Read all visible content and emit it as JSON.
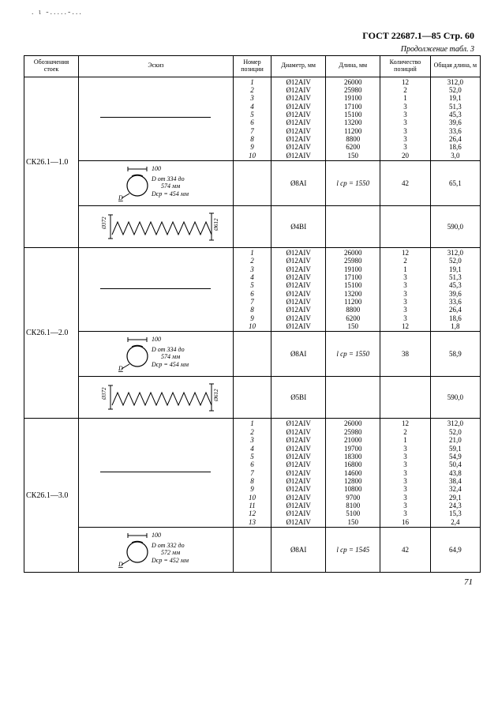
{
  "header": "ГОСТ 22687.1—85 Стр. 60",
  "continuation": "Продолжение табл. 3",
  "columns": {
    "c1": "Обозначения стоек",
    "c2": "Эскиз",
    "c3": "Номер позиции",
    "c4": "Диаметр, мм",
    "c5": "Длина, мм",
    "c6": "Количество позиций",
    "c7": "Общая длина, м"
  },
  "groups": [
    {
      "label": "СК26.1—1.0",
      "rows": [
        {
          "sketch": "bar",
          "nums": [
            "1",
            "2",
            "3",
            "4",
            "5",
            "6",
            "7",
            "8",
            "9",
            "10"
          ],
          "dia": [
            "Ø12AIV",
            "Ø12AIV",
            "Ø12AIV",
            "Ø12AIV",
            "Ø12AIV",
            "Ø12AIV",
            "Ø12AIV",
            "Ø12AIV",
            "Ø12AIV",
            "Ø12AIV"
          ],
          "len": [
            "26000",
            "25980",
            "19100",
            "17100",
            "15100",
            "13200",
            "11200",
            "8800",
            "6200",
            "150"
          ],
          "qty": [
            "12",
            "2",
            "1",
            "3",
            "3",
            "3",
            "3",
            "3",
            "3",
            "20"
          ],
          "tot": [
            "312,0",
            "52,0",
            "19,1",
            "51,3",
            "45,3",
            "39,6",
            "33,6",
            "26,4",
            "18,6",
            "3,0"
          ]
        },
        {
          "sketch": "ring",
          "ring": {
            "w": "100",
            "line1": "D от 334 до",
            "line2": "574 мм",
            "line3": "Dср = 454 мм"
          },
          "dia": "Ø8AI",
          "len": "l ср = 1550",
          "qty": "42",
          "tot": "65,1"
        },
        {
          "sketch": "spiral",
          "spiral": {
            "left": "Ø372",
            "right": "Ø612"
          },
          "dia": "Ø4BI",
          "tot": "590,0"
        }
      ]
    },
    {
      "label": "СК26.1—2.0",
      "rows": [
        {
          "sketch": "bar",
          "nums": [
            "1",
            "2",
            "3",
            "4",
            "5",
            "6",
            "7",
            "8",
            "9",
            "10"
          ],
          "dia": [
            "Ø12AIV",
            "Ø12AIV",
            "Ø12AIV",
            "Ø12AIV",
            "Ø12AIV",
            "Ø12AIV",
            "Ø12AIV",
            "Ø12AIV",
            "Ø12AIV",
            "Ø12AIV"
          ],
          "len": [
            "26000",
            "25980",
            "19100",
            "17100",
            "15100",
            "13200",
            "11200",
            "8800",
            "6200",
            "150"
          ],
          "qty": [
            "12",
            "2",
            "1",
            "3",
            "3",
            "3",
            "3",
            "3",
            "3",
            "12"
          ],
          "tot": [
            "312,0",
            "52,0",
            "19,1",
            "51,3",
            "45,3",
            "39,6",
            "33,6",
            "26,4",
            "18,6",
            "1,8"
          ]
        },
        {
          "sketch": "ring",
          "ring": {
            "w": "100",
            "line1": "D от 334 до",
            "line2": "574 мм",
            "line3": "Dср = 454 мм"
          },
          "dia": "Ø8AI",
          "len": "l ср = 1550",
          "qty": "38",
          "tot": "58,9"
        },
        {
          "sketch": "spiral",
          "spiral": {
            "left": "Ø372",
            "right": "Ø612"
          },
          "dia": "Ø5BI",
          "tot": "590,0"
        }
      ]
    },
    {
      "label": "СК26.1—3.0",
      "rows": [
        {
          "sketch": "bar",
          "nums": [
            "1",
            "2",
            "3",
            "4",
            "5",
            "6",
            "7",
            "8",
            "9",
            "10",
            "11",
            "12",
            "13"
          ],
          "dia": [
            "Ø12AIV",
            "Ø12AIV",
            "Ø12AIV",
            "Ø12AIV",
            "Ø12AIV",
            "Ø12AIV",
            "Ø12AIV",
            "Ø12AIV",
            "Ø12AIV",
            "Ø12AIV",
            "Ø12AIV",
            "Ø12AIV",
            "Ø12AIV"
          ],
          "len": [
            "26000",
            "25980",
            "21000",
            "19700",
            "18300",
            "16800",
            "14600",
            "12800",
            "10800",
            "9700",
            "8100",
            "5100",
            "150"
          ],
          "qty": [
            "12",
            "2",
            "1",
            "3",
            "3",
            "3",
            "3",
            "3",
            "3",
            "3",
            "3",
            "3",
            "16"
          ],
          "tot": [
            "312,0",
            "52,0",
            "21,0",
            "59,1",
            "54,9",
            "50,4",
            "43,8",
            "38,4",
            "32,4",
            "29,1",
            "24,3",
            "15,3",
            "2,4"
          ]
        },
        {
          "sketch": "ring",
          "ring": {
            "w": "100",
            "line1": "D от 332 до",
            "line2": "572 мм",
            "line3": "Dср = 452 мм"
          },
          "dia": "Ø8AI",
          "len": "l ср = 1545",
          "qty": "42",
          "tot": "64,9"
        }
      ]
    }
  ],
  "footer_page": "71"
}
